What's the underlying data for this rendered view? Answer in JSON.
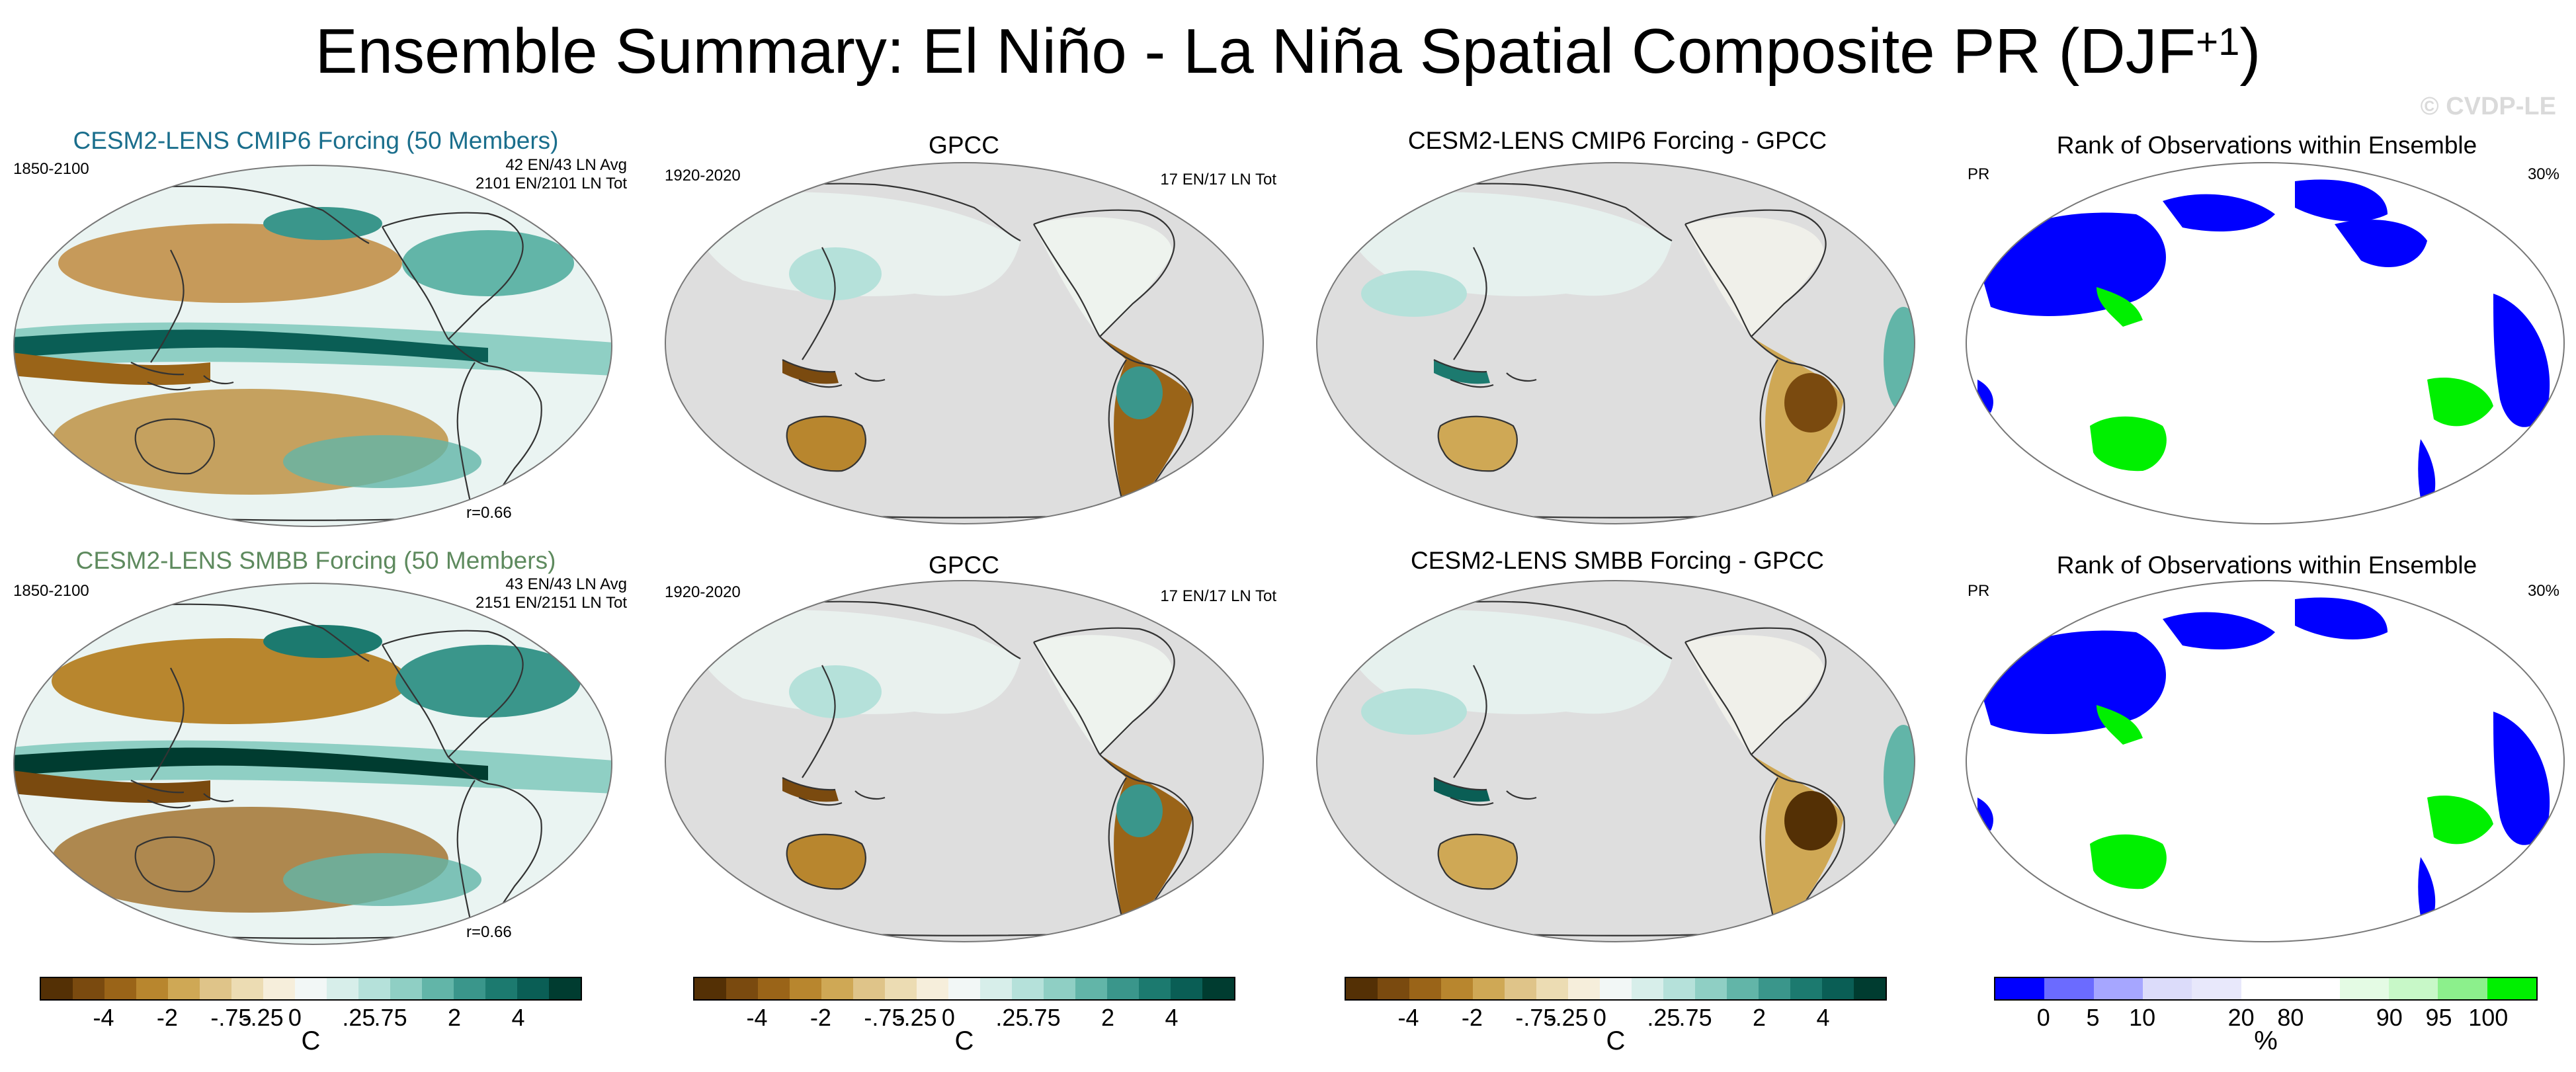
{
  "title": {
    "main": "Ensemble Summary: El Niño - La Niña Spatial Composite PR (DJF",
    "sup": "+1",
    "close": ")"
  },
  "watermark": "© CVDP-LE",
  "rows": [
    {
      "model": {
        "title": "CESM2-LENS CMIP6 Forcing (50 Members)",
        "title_color": "#1a6e8c",
        "years": "1850-2100",
        "stats1": "42 EN/43 LN Avg",
        "stats2": "2101 EN/2101 LN Tot",
        "r": "r=0.66"
      },
      "obs": {
        "title": "GPCC",
        "years": "1920-2020",
        "stats": "17 EN/17 LN Tot"
      },
      "diff": {
        "title": "CESM2-LENS CMIP6 Forcing - GPCC"
      },
      "rank": {
        "title": "Rank of Observations within Ensemble",
        "var": "PR",
        "pct": "30%"
      }
    },
    {
      "model": {
        "title": "CESM2-LENS SMBB Forcing (50 Members)",
        "title_color": "#5e8a5e",
        "years": "1850-2100",
        "stats1": "43 EN/43 LN Avg",
        "stats2": "2151 EN/2151 LN Tot",
        "r": "r=0.66"
      },
      "obs": {
        "title": "GPCC",
        "years": "1920-2020",
        "stats": "17 EN/17 LN Tot"
      },
      "diff": {
        "title": "CESM2-LENS SMBB Forcing - GPCC"
      },
      "rank": {
        "title": "Rank of Observations within Ensemble",
        "var": "PR",
        "pct": "30%"
      }
    }
  ],
  "colorbars": {
    "brbg": {
      "colors": [
        "#543005",
        "#7a4a0f",
        "#9a6418",
        "#b8862e",
        "#cfa855",
        "#dfc489",
        "#ecdcb3",
        "#f6eedb",
        "#f2f7f6",
        "#d7eeea",
        "#b5e1da",
        "#8fcfc4",
        "#62b5a8",
        "#3a968b",
        "#1c7a6f",
        "#0a5e55",
        "#003c30"
      ],
      "labels": [
        "-4",
        "-2",
        "-.75",
        "-.25",
        "0",
        ".25",
        ".75",
        "2",
        "4"
      ],
      "unit": "C"
    },
    "rank": {
      "colors": [
        "#0000ff",
        "#6b6bff",
        "#a6a6ff",
        "#dcdcfa",
        "#e8e8fb",
        "#ffffff",
        "#ffffff",
        "#e4fbe4",
        "#c8f8c8",
        "#8cf08c",
        "#00f000"
      ],
      "labels": [
        "0",
        "5",
        "10",
        "20",
        "80",
        "90",
        "95",
        "100"
      ],
      "unit": "%"
    }
  }
}
